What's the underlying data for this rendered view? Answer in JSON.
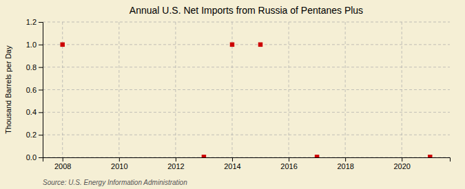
{
  "chart_data": {
    "type": "scatter",
    "title": "Annual U.S. Net Imports from Russia of Pentanes Plus",
    "ylabel": "Thousand Barrels per Day",
    "annotations": [
      "Source: U.S. Energy Information Administration"
    ],
    "x": [
      2008,
      2013,
      2014,
      2015,
      2017,
      2021
    ],
    "values": [
      1.0,
      0.004,
      1.0,
      1.0,
      0.004,
      0.004
    ],
    "color": "#cc0000",
    "marker": "square",
    "xlim": [
      2007.3,
      2021.7
    ],
    "ylim": [
      0.0,
      1.2
    ],
    "xticks": [
      2008,
      2010,
      2012,
      2014,
      2016,
      2018,
      2020
    ],
    "yticks": [
      {
        "value": 0.0,
        "label": "0.0"
      },
      0.2,
      0.4,
      0.6,
      0.8,
      {
        "value": 1.0,
        "label": "1.0"
      },
      1.2
    ],
    "grid": true
  }
}
